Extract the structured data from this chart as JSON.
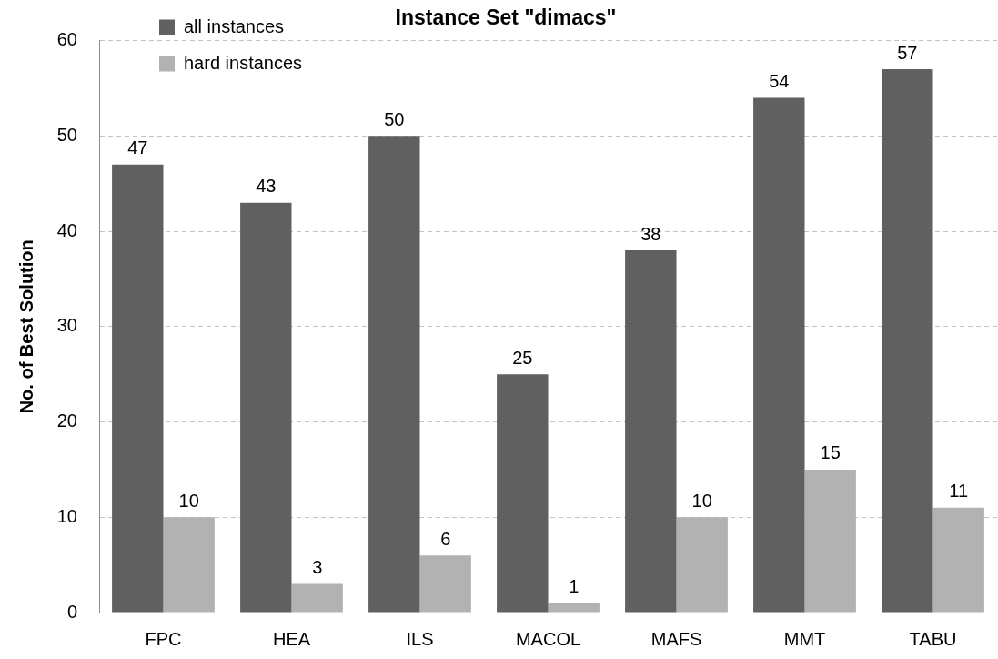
{
  "chart_data": {
    "type": "bar",
    "title": "Instance Set \"dimacs\"",
    "ylabel": "No. of Best Solution",
    "categories": [
      "FPC",
      "HEA",
      "ILS",
      "MACOL",
      "MAFS",
      "MMT",
      "TABU"
    ],
    "series": [
      {
        "name": "all instances",
        "color": "#606060",
        "values": [
          47,
          43,
          50,
          25,
          38,
          54,
          57
        ]
      },
      {
        "name": "hard instances",
        "color": "#b2b2b2",
        "values": [
          10,
          3,
          6,
          1,
          10,
          15,
          11
        ]
      }
    ],
    "ylim": [
      0,
      60
    ],
    "yticks": [
      0,
      10,
      20,
      30,
      40,
      50,
      60
    ],
    "grid": "y",
    "legend": "top left",
    "data_labels": true
  }
}
